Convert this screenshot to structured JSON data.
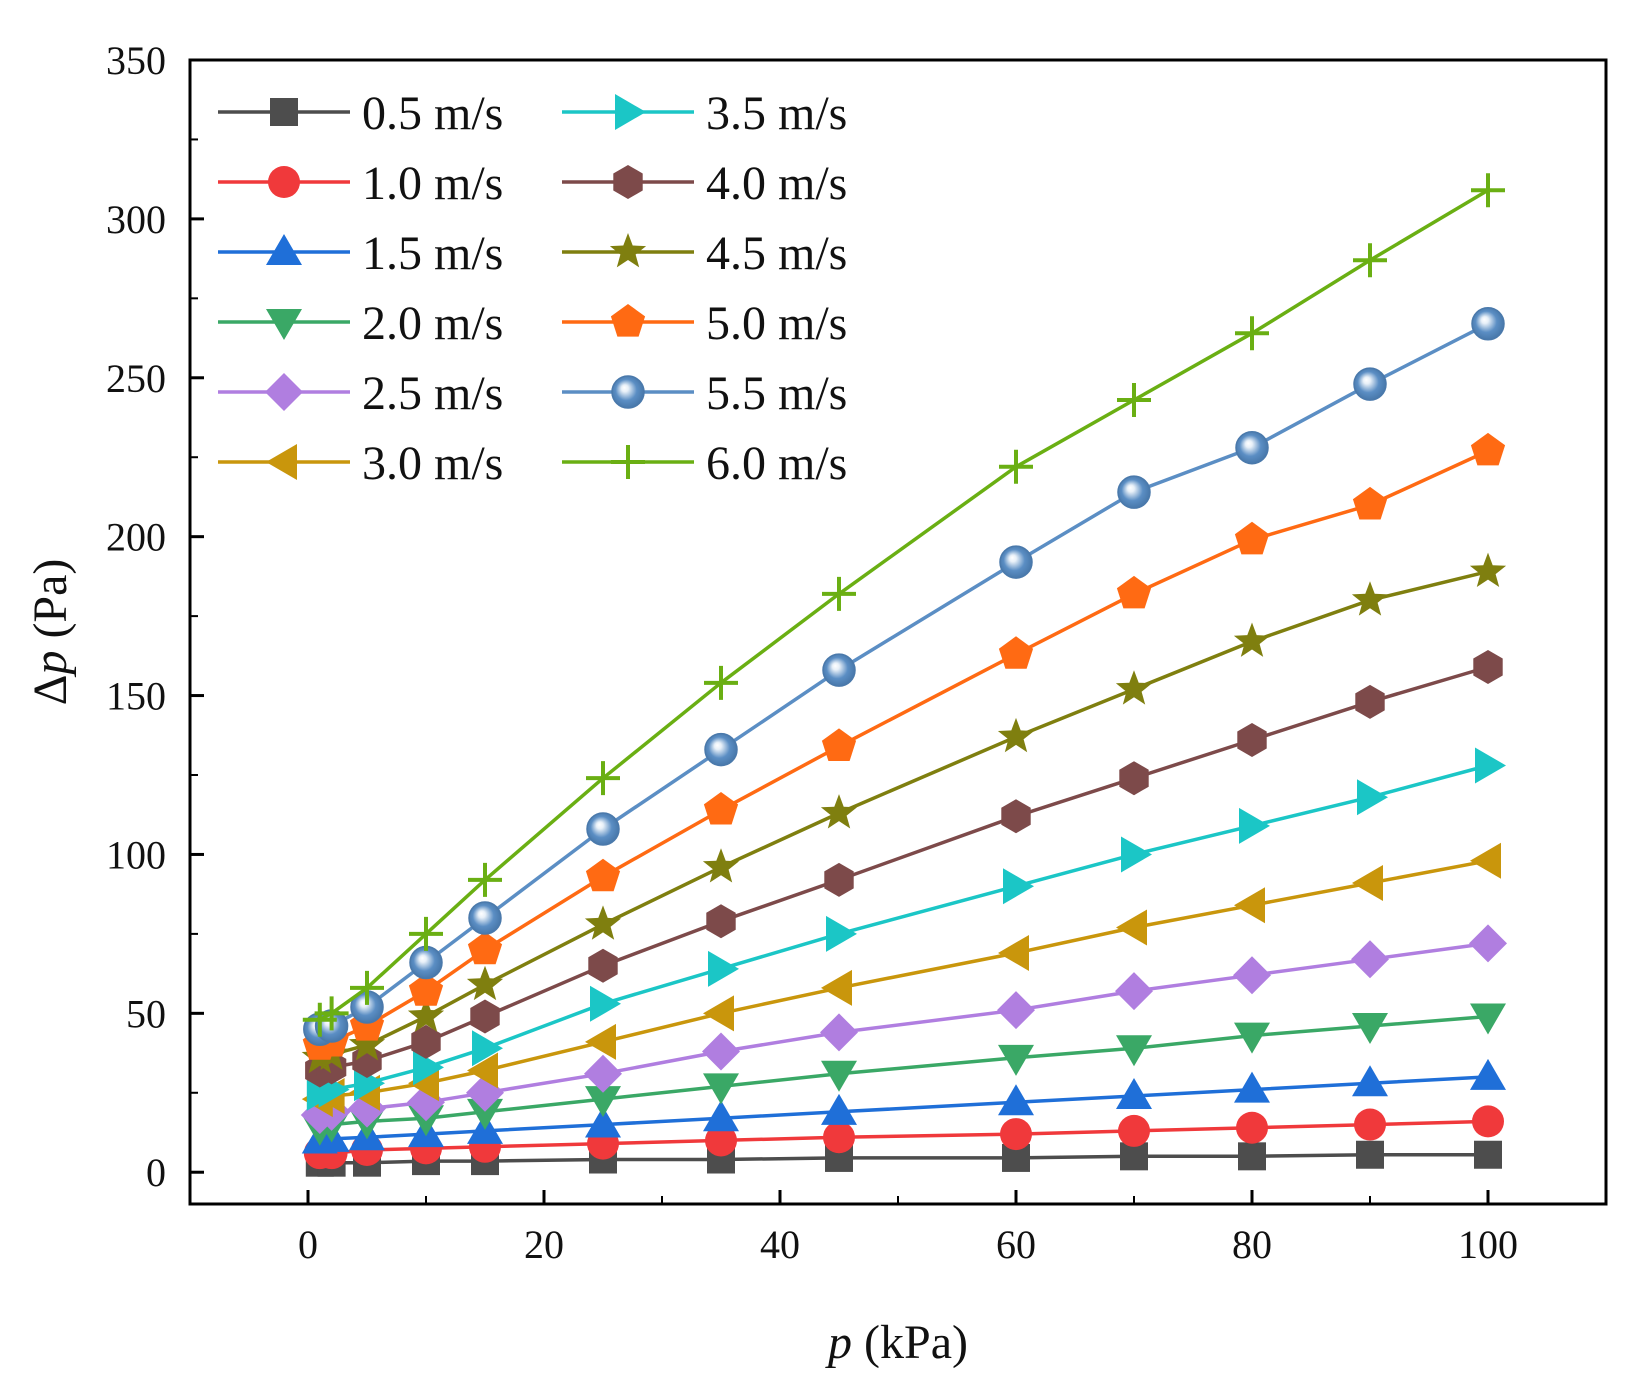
{
  "chart_data": {
    "type": "line",
    "title": "",
    "xlabel": {
      "var": "p",
      "unit": " (kPa)"
    },
    "ylabel": {
      "prefix": "Δ",
      "var": "p",
      "unit": " (Pa)"
    },
    "xlim": [
      -10,
      110
    ],
    "ylim": [
      -10,
      350
    ],
    "x_ticks": [
      0,
      20,
      40,
      60,
      80,
      100
    ],
    "y_ticks": [
      0,
      50,
      100,
      150,
      200,
      250,
      300,
      350
    ],
    "x_minor_step": 10,
    "y_minor_step": 25,
    "grid": false,
    "legend_position": "top-left",
    "x": [
      1,
      2,
      5,
      10,
      15,
      25,
      35,
      45,
      60,
      70,
      80,
      90,
      100
    ],
    "series": [
      {
        "name": "0.5 m/s",
        "color": "#4d4d4d",
        "marker": "square",
        "values": [
          3,
          3,
          3,
          3.5,
          3.5,
          4,
          4,
          4.5,
          4.5,
          5,
          5,
          5.5,
          5.5
        ]
      },
      {
        "name": "1.0 m/s",
        "color": "#f0393b",
        "marker": "circle",
        "values": [
          6,
          6,
          7,
          7.5,
          8,
          9,
          10,
          11,
          12,
          13,
          14,
          15,
          16
        ]
      },
      {
        "name": "1.5 m/s",
        "color": "#1f6fd8",
        "marker": "triangle-up",
        "values": [
          10,
          10.5,
          11,
          12,
          13,
          15,
          17,
          19,
          22,
          24,
          26,
          28,
          30
        ]
      },
      {
        "name": "2.0 m/s",
        "color": "#3aa866",
        "marker": "triangle-down",
        "values": [
          14,
          15,
          16,
          17,
          19,
          23,
          27,
          31,
          36,
          39,
          43,
          46,
          49
        ]
      },
      {
        "name": "2.5 m/s",
        "color": "#b07ee0",
        "marker": "diamond",
        "values": [
          18,
          19,
          20,
          22,
          25,
          31,
          38,
          44,
          51,
          57,
          62,
          67,
          72
        ]
      },
      {
        "name": "3.0 m/s",
        "color": "#c9960c",
        "marker": "triangle-left",
        "values": [
          23,
          24,
          25,
          28,
          32,
          41,
          50,
          58,
          69,
          77,
          84,
          91,
          98
        ]
      },
      {
        "name": "3.5 m/s",
        "color": "#1bc6c6",
        "marker": "triangle-right",
        "values": [
          25,
          26,
          28,
          33,
          39,
          53,
          64,
          75,
          90,
          100,
          109,
          118,
          128
        ]
      },
      {
        "name": "4.0 m/s",
        "color": "#7d4a4a",
        "marker": "hexagon",
        "values": [
          32,
          33,
          35,
          41,
          49,
          65,
          79,
          92,
          112,
          124,
          136,
          148,
          159
        ]
      },
      {
        "name": "4.5 m/s",
        "color": "#7f7f0f",
        "marker": "star",
        "values": [
          36,
          37,
          40,
          49,
          59,
          78,
          96,
          113,
          137,
          152,
          167,
          180,
          189
        ]
      },
      {
        "name": "5.0 m/s",
        "color": "#ff6a13",
        "marker": "pentagon",
        "values": [
          40,
          41,
          46,
          57,
          70,
          93,
          114,
          134,
          163,
          182,
          199,
          210,
          227
        ]
      },
      {
        "name": "5.5 m/s",
        "color": "#5b8ec4",
        "marker": "sphere",
        "values": [
          45,
          46,
          52,
          66,
          80,
          108,
          133,
          158,
          192,
          214,
          228,
          248,
          267
        ]
      },
      {
        "name": "6.0 m/s",
        "color": "#6aaf13",
        "marker": "plus",
        "values": [
          48,
          50,
          58,
          75,
          92,
          124,
          154,
          182,
          222,
          243,
          264,
          287,
          309
        ]
      }
    ]
  }
}
